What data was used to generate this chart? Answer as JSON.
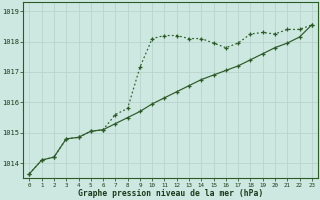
{
  "title": "Graphe pression niveau de la mer (hPa)",
  "bg_color": "#cce8e0",
  "grid_color": "#aacccc",
  "line_color": "#2d5a27",
  "x_ticks": [
    0,
    1,
    2,
    3,
    4,
    5,
    6,
    7,
    8,
    9,
    10,
    11,
    12,
    13,
    14,
    15,
    16,
    17,
    18,
    19,
    20,
    21,
    22,
    23
  ],
  "ylim": [
    1013.5,
    1019.3
  ],
  "yticks": [
    1014,
    1015,
    1016,
    1017,
    1018,
    1019
  ],
  "series1_x": [
    0,
    1,
    2,
    3,
    4,
    5,
    6,
    7,
    8,
    9,
    10,
    11,
    12,
    13,
    14,
    15,
    16,
    17,
    18,
    19,
    20,
    21,
    22,
    23
  ],
  "series1_y": [
    1013.65,
    1014.1,
    1014.2,
    1014.8,
    1014.85,
    1015.05,
    1015.1,
    1015.6,
    1015.8,
    1017.15,
    1018.1,
    1018.2,
    1018.2,
    1018.1,
    1018.1,
    1017.95,
    1017.8,
    1017.95,
    1018.25,
    1018.3,
    1018.25,
    1018.4,
    1018.4,
    1018.55
  ],
  "series2_x": [
    0,
    1,
    2,
    3,
    4,
    5,
    6,
    7,
    8,
    9,
    10,
    11,
    12,
    13,
    14,
    15,
    16,
    17,
    18,
    19,
    20,
    21,
    22,
    23
  ],
  "series2_y": [
    1013.65,
    1014.1,
    1014.2,
    1014.8,
    1014.85,
    1015.05,
    1015.1,
    1015.3,
    1015.5,
    1015.7,
    1015.95,
    1016.15,
    1016.35,
    1016.55,
    1016.75,
    1016.9,
    1017.05,
    1017.2,
    1017.4,
    1017.6,
    1017.8,
    1017.95,
    1018.15,
    1018.55
  ]
}
